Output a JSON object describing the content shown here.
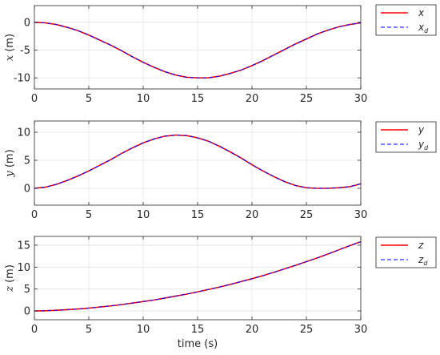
{
  "chart_data": [
    {
      "type": "line",
      "xlabel": "",
      "ylabel_var": "x",
      "ylabel_unit": "(m)",
      "xlim": [
        0,
        30
      ],
      "ylim": [
        -12,
        3
      ],
      "xticks": [
        0,
        5,
        10,
        15,
        20,
        25,
        30
      ],
      "yticks": [
        0,
        -5,
        -10
      ],
      "grid": true,
      "legend_position": "outside-right-top",
      "legend": [
        {
          "base": "x",
          "sub": "",
          "style": "solid",
          "color": "#ff0000"
        },
        {
          "base": "x",
          "sub": "d",
          "style": "dashed",
          "color": "#0000ff"
        }
      ],
      "x": [
        0,
        1,
        2,
        3,
        4,
        5,
        6,
        7,
        8,
        9,
        10,
        11,
        12,
        13,
        14,
        15,
        16,
        17,
        18,
        19,
        20,
        21,
        22,
        23,
        24,
        25,
        26,
        27,
        28,
        29,
        30
      ],
      "series": [
        {
          "name": "x",
          "values": [
            0.0,
            -0.1,
            -0.4,
            -0.9,
            -1.5,
            -2.3,
            -3.2,
            -4.1,
            -5.1,
            -6.2,
            -7.2,
            -8.1,
            -8.9,
            -9.5,
            -9.9,
            -10.0,
            -10.0,
            -9.7,
            -9.2,
            -8.6,
            -7.8,
            -6.9,
            -5.9,
            -4.9,
            -3.9,
            -3.0,
            -2.1,
            -1.4,
            -0.8,
            -0.4,
            -0.1
          ]
        },
        {
          "name": "x_d",
          "values": [
            0.0,
            -0.1,
            -0.4,
            -0.9,
            -1.5,
            -2.3,
            -3.2,
            -4.1,
            -5.1,
            -6.2,
            -7.2,
            -8.1,
            -8.9,
            -9.5,
            -9.9,
            -10.0,
            -10.0,
            -9.7,
            -9.2,
            -8.6,
            -7.8,
            -6.9,
            -5.9,
            -4.9,
            -3.9,
            -3.0,
            -2.1,
            -1.4,
            -0.8,
            -0.4,
            -0.1
          ]
        }
      ]
    },
    {
      "type": "line",
      "xlabel": "",
      "ylabel_var": "y",
      "ylabel_unit": "(m)",
      "xlim": [
        0,
        30
      ],
      "ylim": [
        -3,
        12
      ],
      "xticks": [
        0,
        5,
        10,
        15,
        20,
        25,
        30
      ],
      "yticks": [
        0,
        5,
        10
      ],
      "grid": true,
      "legend_position": "outside-right-top",
      "legend": [
        {
          "base": "y",
          "sub": "",
          "style": "solid",
          "color": "#ff0000"
        },
        {
          "base": "y",
          "sub": "d",
          "style": "dashed",
          "color": "#0000ff"
        }
      ],
      "x": [
        0,
        1,
        2,
        3,
        4,
        5,
        6,
        7,
        8,
        9,
        10,
        11,
        12,
        13,
        14,
        15,
        16,
        17,
        18,
        19,
        20,
        21,
        22,
        23,
        24,
        25,
        26,
        27,
        28,
        29,
        30
      ],
      "series": [
        {
          "name": "y",
          "values": [
            0.0,
            0.2,
            0.7,
            1.4,
            2.2,
            3.1,
            4.1,
            5.1,
            6.2,
            7.2,
            8.1,
            8.8,
            9.3,
            9.5,
            9.4,
            9.0,
            8.4,
            7.5,
            6.5,
            5.4,
            4.2,
            3.1,
            2.1,
            1.2,
            0.5,
            0.1,
            0.0,
            0.0,
            0.1,
            0.3,
            0.8
          ]
        },
        {
          "name": "y_d",
          "values": [
            0.0,
            0.2,
            0.7,
            1.4,
            2.2,
            3.1,
            4.1,
            5.1,
            6.2,
            7.2,
            8.1,
            8.8,
            9.3,
            9.5,
            9.4,
            9.0,
            8.4,
            7.5,
            6.5,
            5.4,
            4.2,
            3.1,
            2.1,
            1.2,
            0.5,
            0.1,
            0.0,
            0.0,
            0.1,
            0.3,
            0.8
          ]
        }
      ]
    },
    {
      "type": "line",
      "xlabel": "time (s)",
      "ylabel_var": "z",
      "ylabel_unit": "(m)",
      "xlim": [
        0,
        30
      ],
      "ylim": [
        -2,
        17
      ],
      "xticks": [
        0,
        5,
        10,
        15,
        20,
        25,
        30
      ],
      "yticks": [
        0,
        5,
        10,
        15
      ],
      "grid": true,
      "legend_position": "outside-right-top",
      "legend": [
        {
          "base": "z",
          "sub": "",
          "style": "solid",
          "color": "#ff0000"
        },
        {
          "base": "z",
          "sub": "d",
          "style": "dashed",
          "color": "#0000ff"
        }
      ],
      "x": [
        0,
        1,
        2,
        3,
        4,
        5,
        6,
        7,
        8,
        9,
        10,
        11,
        12,
        13,
        14,
        15,
        16,
        17,
        18,
        19,
        20,
        21,
        22,
        23,
        24,
        25,
        26,
        27,
        28,
        29,
        30
      ],
      "series": [
        {
          "name": "z",
          "values": [
            0.0,
            0.05,
            0.15,
            0.3,
            0.45,
            0.65,
            0.9,
            1.15,
            1.45,
            1.8,
            2.15,
            2.5,
            2.95,
            3.4,
            3.85,
            4.35,
            4.9,
            5.45,
            6.05,
            6.7,
            7.35,
            8.05,
            8.8,
            9.6,
            10.4,
            11.25,
            12.1,
            13.0,
            13.95,
            14.9,
            15.8
          ]
        },
        {
          "name": "z_d",
          "values": [
            0.0,
            0.05,
            0.15,
            0.3,
            0.45,
            0.65,
            0.9,
            1.15,
            1.45,
            1.8,
            2.15,
            2.5,
            2.95,
            3.4,
            3.85,
            4.35,
            4.9,
            5.45,
            6.05,
            6.7,
            7.35,
            8.05,
            8.8,
            9.6,
            10.4,
            11.25,
            12.1,
            13.0,
            13.95,
            14.9,
            15.8
          ]
        }
      ]
    }
  ]
}
